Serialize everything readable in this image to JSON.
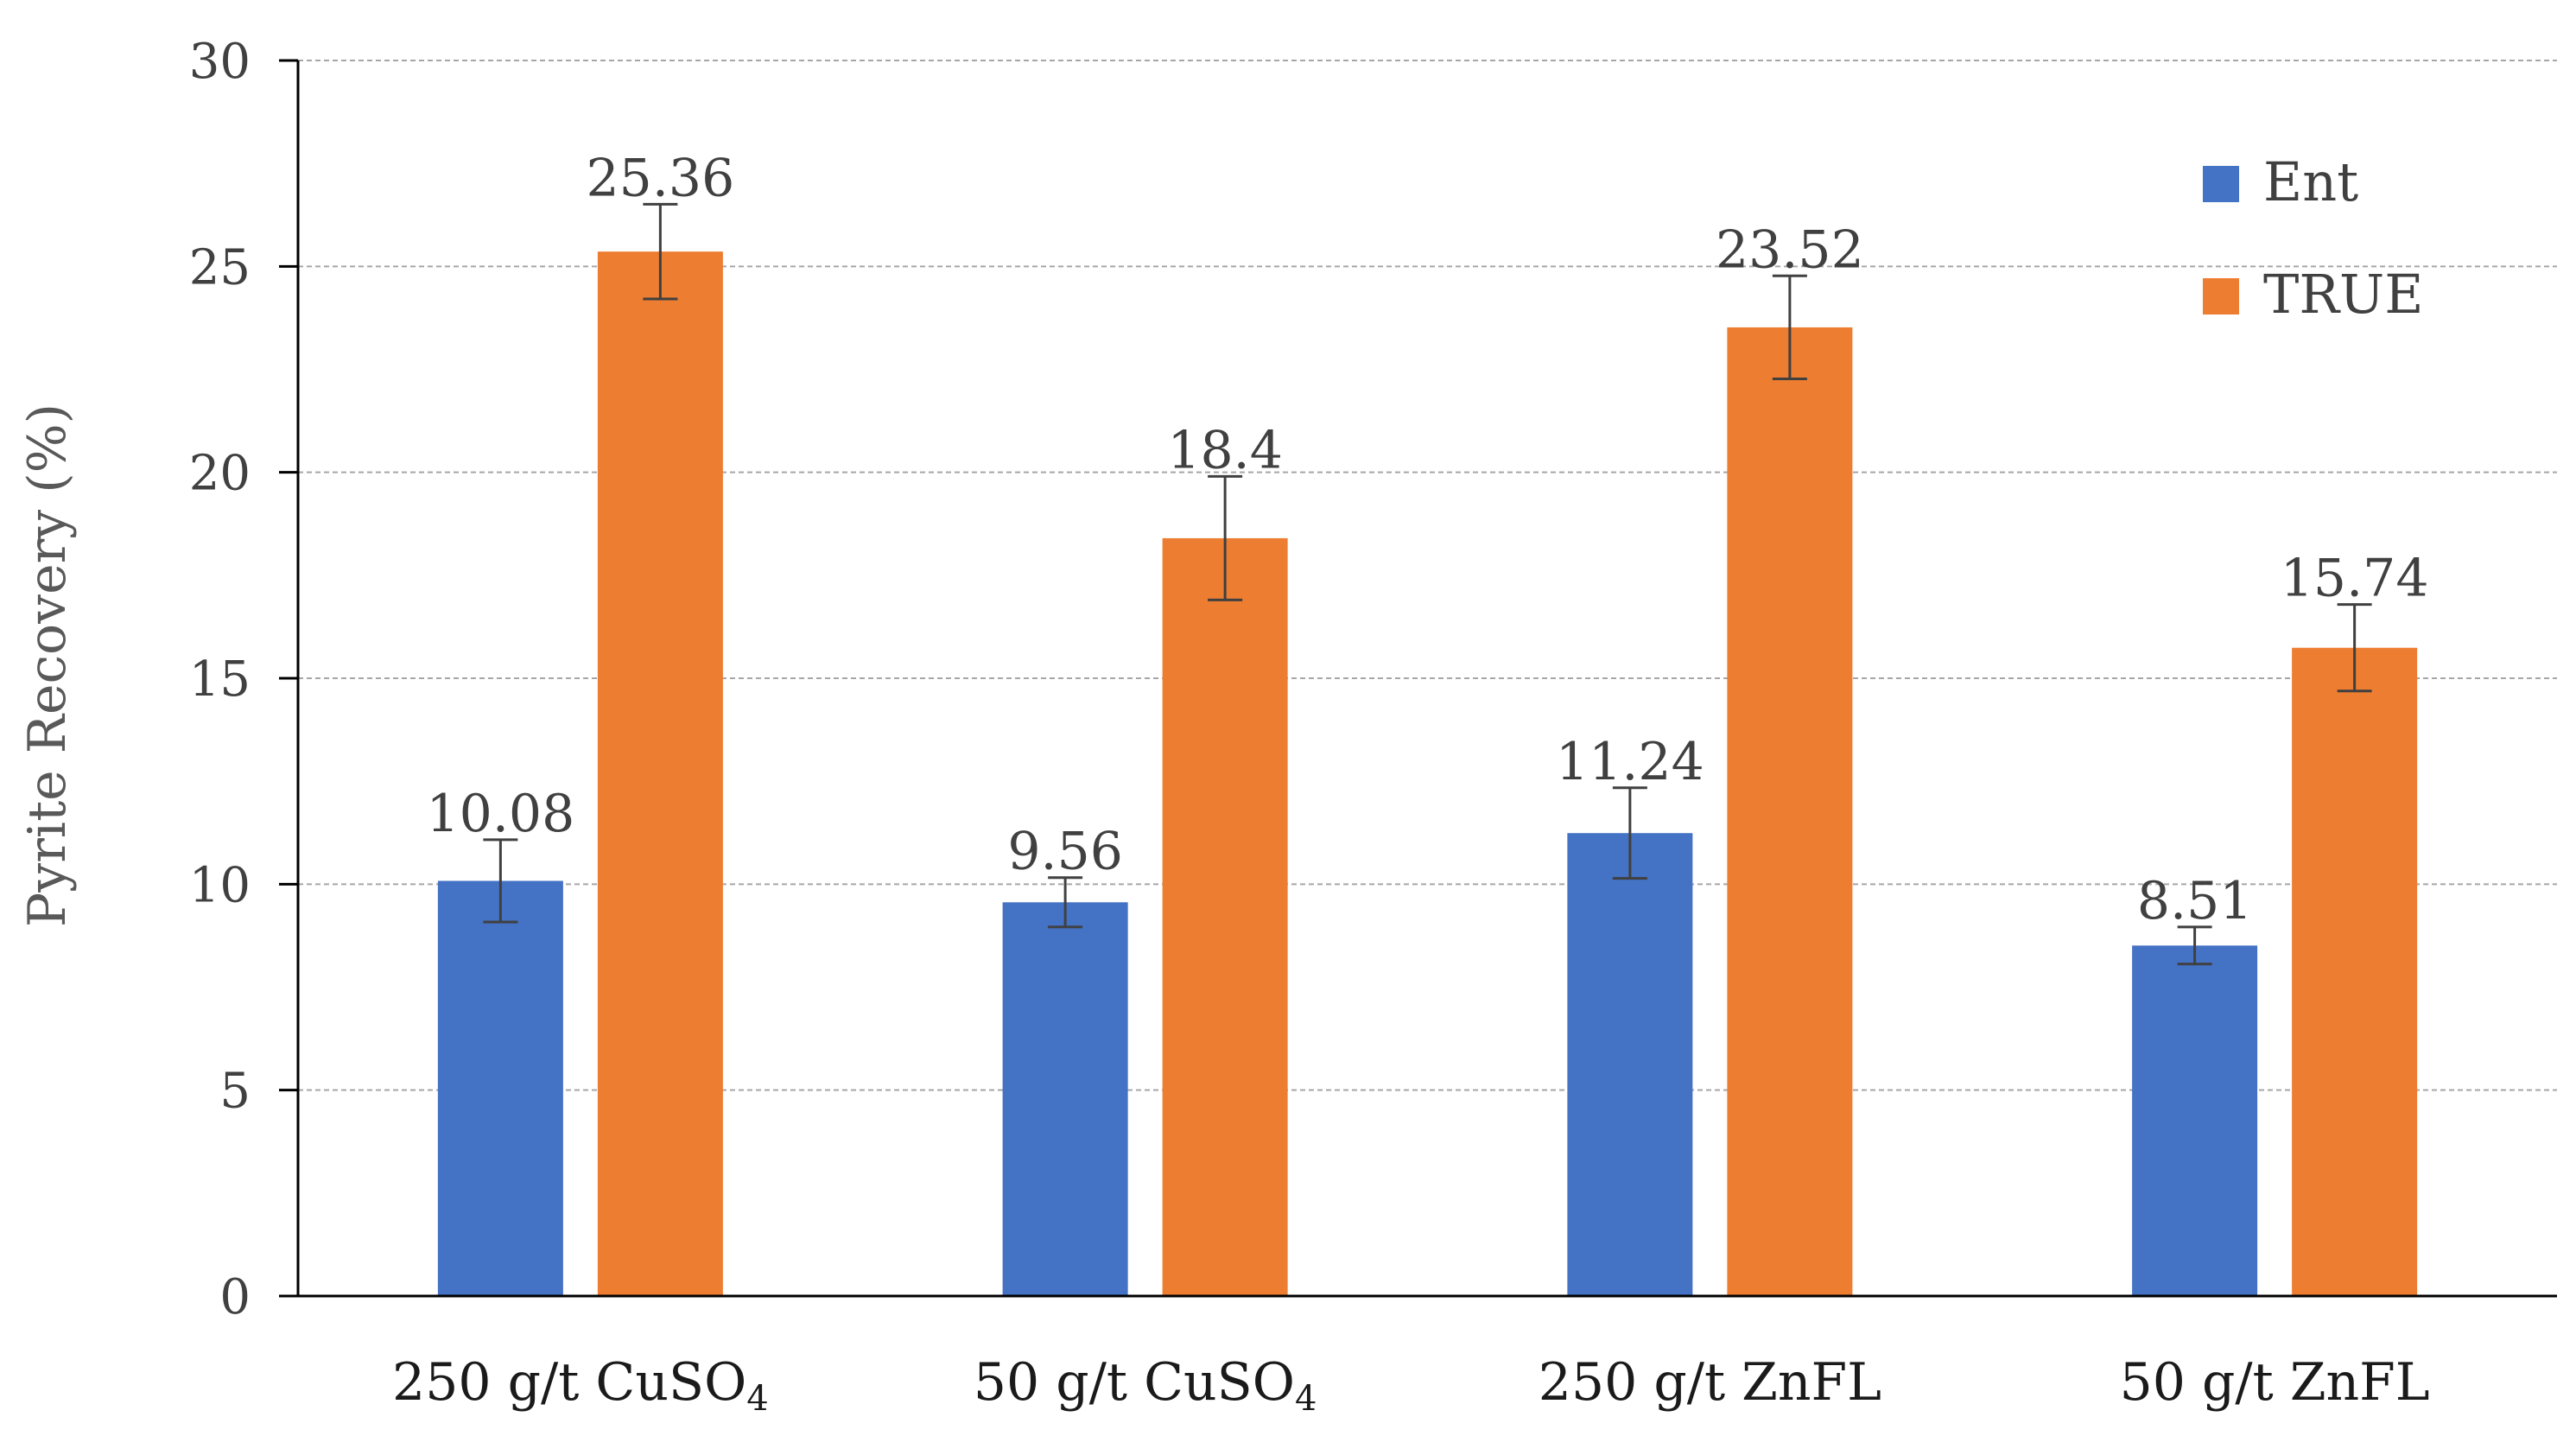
{
  "chart_data": {
    "type": "bar",
    "title": "",
    "xlabel": "",
    "ylabel": "Pyrite Recovery (%)",
    "ylim": [
      0,
      30
    ],
    "yticks": [
      0,
      5,
      10,
      15,
      20,
      25,
      30
    ],
    "grid": true,
    "legend_position": "top-right",
    "categories": [
      {
        "base": "250 g/t CuSO",
        "sub": "4"
      },
      {
        "base": "50 g/t CuSO",
        "sub": "4"
      },
      {
        "base": "250 g/t ZnFL",
        "sub": ""
      },
      {
        "base": "50 g/t ZnFL",
        "sub": ""
      }
    ],
    "series": [
      {
        "name": "Ent",
        "color": "#4472C4",
        "values": [
          10.08,
          9.56,
          11.24,
          8.51
        ],
        "labels": [
          "10.08",
          "9.56",
          "11.24",
          "8.51"
        ],
        "errors": [
          1.0,
          0.6,
          1.1,
          0.45
        ]
      },
      {
        "name": "TRUE",
        "color": "#ED7D31",
        "values": [
          25.36,
          18.4,
          23.52,
          15.74
        ],
        "labels": [
          "25.36",
          "18.4",
          "23.52",
          "15.74"
        ],
        "errors": [
          1.15,
          1.5,
          1.25,
          1.05
        ]
      }
    ]
  }
}
